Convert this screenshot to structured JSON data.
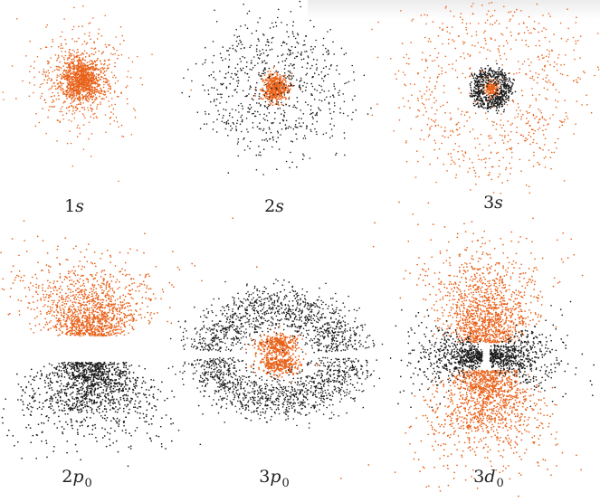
{
  "colors": {
    "primary": "#e8621a",
    "secondary": "#1c1c1c"
  },
  "orbitals": [
    {
      "id": "1s",
      "n": "1",
      "l": "s",
      "m": ""
    },
    {
      "id": "2s",
      "n": "2",
      "l": "s",
      "m": ""
    },
    {
      "id": "3s",
      "n": "3",
      "l": "s",
      "m": ""
    },
    {
      "id": "2p0",
      "n": "2",
      "l": "p",
      "m": "0"
    },
    {
      "id": "3p0",
      "n": "3",
      "l": "p",
      "m": "0"
    },
    {
      "id": "3d0",
      "n": "3",
      "l": "d",
      "m": "0"
    }
  ]
}
